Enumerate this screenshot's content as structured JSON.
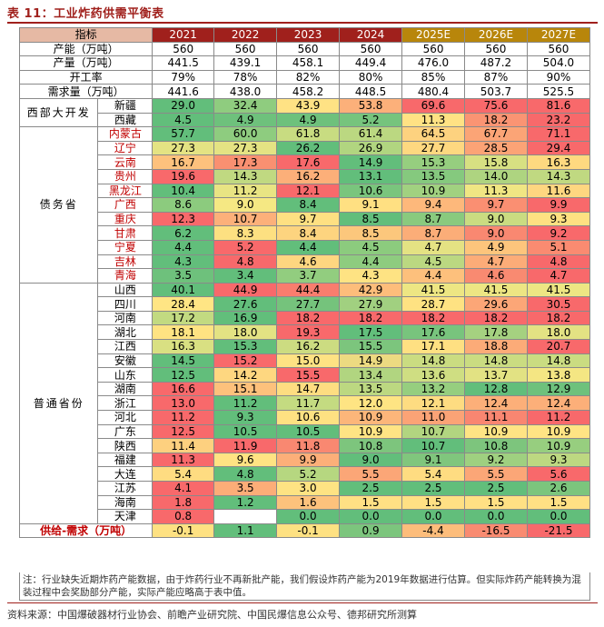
{
  "title": "表 11：工业炸药供需平衡表",
  "header": {
    "label": "指标",
    "years": [
      "2021",
      "2022",
      "2023",
      "2024",
      "2025E",
      "2026E",
      "2027E"
    ]
  },
  "summary_rows": [
    {
      "label": "产能（万吨）",
      "values": [
        "560",
        "560",
        "560",
        "560",
        "560",
        "560",
        "560"
      ]
    },
    {
      "label": "产量（万吨）",
      "values": [
        "441.5",
        "439.1",
        "458.1",
        "449.4",
        "476.0",
        "487.2",
        "504.0"
      ]
    },
    {
      "label": "开工率",
      "values": [
        "79%",
        "78%",
        "82%",
        "80%",
        "85%",
        "87%",
        "90%"
      ]
    },
    {
      "label": "需求量（万吨）",
      "values": [
        "441.6",
        "438.0",
        "458.2",
        "448.5",
        "480.4",
        "503.7",
        "525.5"
      ]
    }
  ],
  "groups": [
    {
      "name": "西部大开发",
      "rows": [
        {
          "province": "新疆",
          "red": false,
          "values": [
            "29.0",
            "32.4",
            "43.9",
            "53.8",
            "69.6",
            "75.6",
            "81.6"
          ],
          "colors": [
            "#62be7b",
            "#8fcc7f",
            "#ffe284",
            "#fcb07a",
            "#f8696b",
            "#f8696b",
            "#f8696b"
          ]
        },
        {
          "province": "西藏",
          "red": false,
          "values": [
            "4.5",
            "4.9",
            "4.9",
            "5.2",
            "11.3",
            "18.2",
            "23.2"
          ],
          "colors": [
            "#62be7b",
            "#6ec17c",
            "#6ec17c",
            "#76c47d",
            "#ffe284",
            "#fa9473",
            "#f8696b"
          ]
        }
      ]
    },
    {
      "name": "债务省",
      "rows": [
        {
          "province": "内蒙古",
          "red": true,
          "values": [
            "57.7",
            "60.0",
            "61.8",
            "61.4",
            "64.5",
            "67.7",
            "71.1"
          ],
          "colors": [
            "#62be7b",
            "#8ecc7f",
            "#c8dc81",
            "#bbd881",
            "#fdd27f",
            "#fba476",
            "#f8696b"
          ]
        },
        {
          "province": "辽宁",
          "red": true,
          "values": [
            "27.3",
            "27.3",
            "26.2",
            "26.9",
            "27.7",
            "28.5",
            "29.4"
          ],
          "colors": [
            "#e4e383",
            "#e4e383",
            "#62be7b",
            "#b1d580",
            "#fed880",
            "#fba376",
            "#f8696b"
          ]
        },
        {
          "province": "云南",
          "red": true,
          "values": [
            "16.7",
            "17.3",
            "17.6",
            "14.9",
            "15.3",
            "15.8",
            "16.3"
          ],
          "colors": [
            "#fdc17d",
            "#f99071",
            "#f8696b",
            "#62be7b",
            "#96ce7f",
            "#d7e082",
            "#fed980"
          ]
        },
        {
          "province": "贵州",
          "red": true,
          "values": [
            "19.6",
            "14.3",
            "16.2",
            "13.1",
            "13.5",
            "14.0",
            "14.3"
          ],
          "colors": [
            "#f8696b",
            "#c0d981",
            "#fcaf79",
            "#62be7b",
            "#85c97e",
            "#aed480",
            "#c0d981"
          ]
        },
        {
          "province": "黑龙江",
          "red": true,
          "values": [
            "10.4",
            "11.2",
            "12.1",
            "10.6",
            "10.9",
            "11.3",
            "11.6"
          ],
          "colors": [
            "#62be7b",
            "#e8e483",
            "#f8696b",
            "#7ac57d",
            "#a1d180",
            "#f0e683",
            "#fed680"
          ]
        },
        {
          "province": "广西",
          "red": true,
          "values": [
            "8.6",
            "9.0",
            "8.4",
            "9.1",
            "9.4",
            "9.7",
            "9.9"
          ],
          "colors": [
            "#8ccb7e",
            "#f5e883",
            "#62be7b",
            "#ffe082",
            "#fdb87b",
            "#fa8f72",
            "#f8696b"
          ]
        },
        {
          "province": "重庆",
          "red": true,
          "values": [
            "12.3",
            "10.7",
            "9.7",
            "8.5",
            "8.7",
            "9.0",
            "9.3"
          ],
          "colors": [
            "#f8696b",
            "#fcb07a",
            "#fee082",
            "#62be7b",
            "#89ca7e",
            "#cadc81",
            "#fee182"
          ]
        },
        {
          "province": "甘肃",
          "red": true,
          "values": [
            "6.2",
            "8.3",
            "8.4",
            "8.5",
            "8.7",
            "9.0",
            "9.2"
          ],
          "colors": [
            "#62be7b",
            "#fde081",
            "#fdd47f",
            "#fcc77c",
            "#fbad78",
            "#f98871",
            "#f8696b"
          ]
        },
        {
          "province": "宁夏",
          "red": true,
          "values": [
            "4.4",
            "5.2",
            "4.4",
            "4.5",
            "4.7",
            "4.9",
            "5.1"
          ],
          "colors": [
            "#62be7b",
            "#f8696b",
            "#62be7b",
            "#8ccb7e",
            "#e4e283",
            "#fdc57c",
            "#fa8b71"
          ]
        },
        {
          "province": "吉林",
          "red": true,
          "values": [
            "4.3",
            "4.8",
            "4.6",
            "4.4",
            "4.5",
            "4.7",
            "4.8"
          ],
          "colors": [
            "#62be7b",
            "#f8696b",
            "#fed680",
            "#8ecc7f",
            "#bbd881",
            "#fcac78",
            "#f8696b"
          ]
        },
        {
          "province": "青海",
          "red": true,
          "values": [
            "3.5",
            "3.4",
            "3.7",
            "4.3",
            "4.4",
            "4.6",
            "4.7"
          ],
          "colors": [
            "#6ec17c",
            "#62be7b",
            "#92cd7f",
            "#fee383",
            "#fdc07c",
            "#f98a71",
            "#f8696b"
          ]
        }
      ]
    },
    {
      "name": "普通省份",
      "rows": [
        {
          "province": "山西",
          "red": false,
          "values": [
            "40.1",
            "44.9",
            "44.4",
            "42.9",
            "41.5",
            "41.5",
            "41.5"
          ],
          "colors": [
            "#62be7b",
            "#f8696b",
            "#f97d6e",
            "#fdbd7b",
            "#ede683",
            "#ede683",
            "#ede683"
          ]
        },
        {
          "province": "四川",
          "red": false,
          "values": [
            "28.4",
            "27.6",
            "27.7",
            "27.9",
            "28.7",
            "29.6",
            "30.5"
          ],
          "colors": [
            "#ffe584",
            "#62be7b",
            "#75c37c",
            "#a1d080",
            "#fee282",
            "#fca677",
            "#f8696b"
          ]
        },
        {
          "province": "河南",
          "red": false,
          "values": [
            "17.2",
            "16.9",
            "18.2",
            "18.2",
            "18.2",
            "18.2",
            "18.2"
          ],
          "colors": [
            "#c2da81",
            "#62be7b",
            "#f8696b",
            "#f8696b",
            "#f8696b",
            "#f8696b",
            "#f8696b"
          ]
        },
        {
          "province": "湖北",
          "red": false,
          "values": [
            "18.1",
            "18.0",
            "19.3",
            "17.5",
            "17.6",
            "17.8",
            "18.0"
          ],
          "colors": [
            "#fee382",
            "#e3e283",
            "#f8696b",
            "#62be7b",
            "#78c47d",
            "#a5d180",
            "#e3e283"
          ]
        },
        {
          "province": "江西",
          "red": false,
          "values": [
            "16.3",
            "15.3",
            "16.2",
            "15.5",
            "17.1",
            "18.8",
            "20.7"
          ],
          "colors": [
            "#d9e082",
            "#62be7b",
            "#ccdc81",
            "#7cc57d",
            "#fee082",
            "#fcab78",
            "#f8696b"
          ]
        },
        {
          "province": "安徽",
          "red": false,
          "values": [
            "14.5",
            "15.2",
            "15.0",
            "14.9",
            "14.8",
            "14.8",
            "14.8"
          ],
          "colors": [
            "#62be7b",
            "#f8696b",
            "#fee283",
            "#ecda81",
            "#cadc81",
            "#cadc81",
            "#cadc81"
          ]
        },
        {
          "province": "山东",
          "red": false,
          "values": [
            "12.5",
            "14.2",
            "15.5",
            "13.4",
            "13.6",
            "13.7",
            "13.8"
          ],
          "colors": [
            "#62be7b",
            "#fed780",
            "#f8696b",
            "#b1d580",
            "#cfde82",
            "#e2e283",
            "#f4e683"
          ]
        },
        {
          "province": "湖南",
          "red": false,
          "values": [
            "16.6",
            "15.1",
            "14.7",
            "13.5",
            "13.2",
            "12.8",
            "12.9"
          ],
          "colors": [
            "#f8696b",
            "#fdc17c",
            "#fedd81",
            "#bcd881",
            "#96ce7f",
            "#62be7b",
            "#6ec17c"
          ]
        },
        {
          "province": "浙江",
          "red": false,
          "values": [
            "13.0",
            "11.2",
            "11.7",
            "12.0",
            "12.1",
            "12.4",
            "12.4"
          ],
          "colors": [
            "#f8696b",
            "#62be7b",
            "#c4db81",
            "#fee483",
            "#fedc81",
            "#fcaf79",
            "#fcaf79"
          ]
        },
        {
          "province": "河北",
          "red": false,
          "values": [
            "11.2",
            "9.3",
            "10.6",
            "10.9",
            "11.0",
            "11.1",
            "11.2"
          ],
          "colors": [
            "#f8696b",
            "#62be7b",
            "#fee182",
            "#fcb67a",
            "#fba376",
            "#f98671",
            "#f8696b"
          ]
        },
        {
          "province": "广东",
          "red": false,
          "values": [
            "12.5",
            "10.5",
            "10.5",
            "10.9",
            "10.7",
            "10.9",
            "10.9"
          ],
          "colors": [
            "#f8696b",
            "#62be7b",
            "#62be7b",
            "#ffe484",
            "#b2d580",
            "#ffe484",
            "#ffe484"
          ]
        },
        {
          "province": "陕西",
          "red": false,
          "values": [
            "11.4",
            "11.9",
            "11.8",
            "10.8",
            "10.7",
            "10.8",
            "10.9"
          ],
          "colors": [
            "#fdd07f",
            "#f8696b",
            "#f98871",
            "#7dc57d",
            "#62be7b",
            "#7dc57d",
            "#97ce7f"
          ]
        },
        {
          "province": "福建",
          "red": false,
          "values": [
            "11.3",
            "9.6",
            "9.9",
            "9.0",
            "9.1",
            "9.2",
            "9.3"
          ],
          "colors": [
            "#f8696b",
            "#ffe383",
            "#fcaf79",
            "#62be7b",
            "#80c67d",
            "#9fd080",
            "#bdd881"
          ]
        },
        {
          "province": "大连",
          "red": false,
          "values": [
            "5.4",
            "4.8",
            "5.2",
            "5.5",
            "5.4",
            "5.5",
            "5.6"
          ],
          "colors": [
            "#fedc81",
            "#62be7b",
            "#b6d780",
            "#fba677",
            "#fedc81",
            "#fba677",
            "#f8696b"
          ]
        },
        {
          "province": "江苏",
          "red": false,
          "values": [
            "4.1",
            "3.5",
            "3.0",
            "2.5",
            "2.5",
            "2.5",
            "2.6"
          ],
          "colors": [
            "#f8696b",
            "#fcad78",
            "#fee383",
            "#62be7b",
            "#62be7b",
            "#62be7b",
            "#7cc57d"
          ]
        },
        {
          "province": "海南",
          "red": false,
          "values": [
            "1.8",
            "1.2",
            "1.6",
            "1.5",
            "1.5",
            "1.5",
            "1.5"
          ],
          "colors": [
            "#f8696b",
            "#62be7b",
            "#fdc27c",
            "#ffe084",
            "#ffe084",
            "#ffe084",
            "#ffe084"
          ]
        },
        {
          "province": "天津",
          "red": false,
          "values": [
            "0.8",
            "",
            "0.0",
            "0.0",
            "0.0",
            "0.0",
            "0.0"
          ],
          "colors": [
            "#f8696b",
            "#ffffff",
            "#62be7b",
            "#62be7b",
            "#62be7b",
            "#62be7b",
            "#62be7b"
          ]
        }
      ]
    }
  ],
  "balance": {
    "label": "供给-需求（万吨）",
    "values": [
      "-0.1",
      "1.1",
      "-0.1",
      "0.9",
      "-4.4",
      "-16.5",
      "-21.5"
    ],
    "colors": [
      "#fee182",
      "#62be7b",
      "#fee182",
      "#7cc57d",
      "#fdbd7b",
      "#f98b71",
      "#f8696b"
    ]
  },
  "note": "注：行业缺失近期炸药产能数据，由于炸药行业不再新批产能，我们假设炸药产能为2019年数据进行估算。但实际炸药产能转换为混装过程中会奖励部分产能，实际产能应略高于表中值。",
  "source": "资料来源：中国爆破器材行业协会、前瞻产业研究院、中国民爆信息公众号、德邦研究所测算"
}
